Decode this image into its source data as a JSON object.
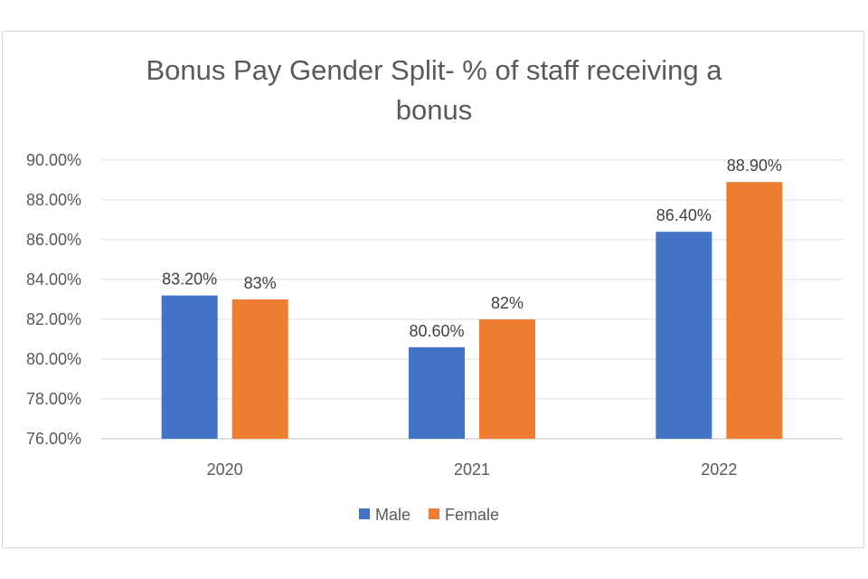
{
  "chart_data": {
    "type": "bar",
    "title_lines": [
      "Bonus Pay Gender Split- % of staff receiving a",
      "bonus"
    ],
    "categories": [
      "2020",
      "2021",
      "2022"
    ],
    "series": [
      {
        "name": "Male",
        "color": "#4472C4",
        "values": [
          83.2,
          80.6,
          86.4
        ],
        "labels": [
          "83.20%",
          "80.60%",
          "86.40%"
        ]
      },
      {
        "name": "Female",
        "color": "#ED7D31",
        "values": [
          83.0,
          82.0,
          88.9
        ],
        "labels": [
          "83%",
          "82%",
          "88.90%"
        ]
      }
    ],
    "ylim": [
      76,
      90
    ],
    "yticks": [
      76,
      78,
      80,
      82,
      84,
      86,
      88,
      90
    ],
    "ytick_labels": [
      "76.00%",
      "78.00%",
      "80.00%",
      "82.00%",
      "84.00%",
      "86.00%",
      "88.00%",
      "90.00%"
    ],
    "grid": true,
    "legend_position": "bottom",
    "xlabel": "",
    "ylabel": ""
  }
}
